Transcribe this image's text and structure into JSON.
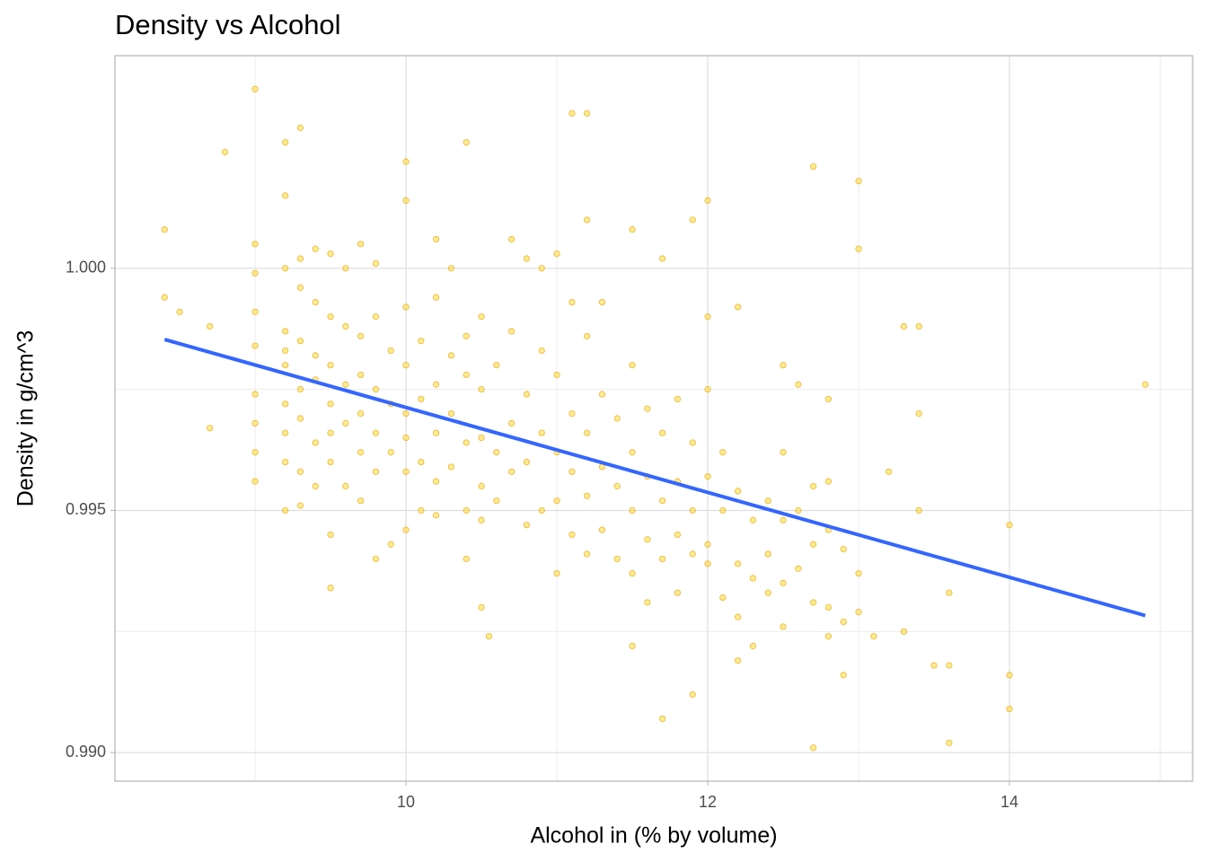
{
  "chart_data": {
    "type": "scatter",
    "title": "Density vs Alcohol",
    "x_label": "Alcohol in (% by volume)",
    "y_label": "Density in g/cm^3",
    "xlim": [
      8.071,
      15.214
    ],
    "ylim": [
      0.98941,
      1.00439
    ],
    "xticks": [
      10,
      12,
      14
    ],
    "yticks": [
      {
        "value": 0.99,
        "label": "0.990"
      },
      0.995,
      {
        "value": 1,
        "label": "1.000"
      }
    ],
    "x_minor_grid": [
      9,
      11,
      13,
      15
    ],
    "y_minor_grid": [
      0.9925,
      0.9975
    ],
    "grid": true,
    "color": "#ffd700",
    "edge_color": "#e69500",
    "x": [
      9.0,
      8.4,
      8.4,
      8.5,
      8.7,
      8.7,
      8.8,
      9.2,
      9.3,
      9.2,
      10.4,
      10.0,
      11.1,
      11.2,
      12.7,
      13.0,
      13.0,
      12.0,
      14.9,
      14.0,
      14.0,
      14.0,
      12.7,
      13.6,
      11.7,
      11.9,
      13.5,
      13.6,
      13.3,
      13.1,
      12.9,
      13.6,
      9.5,
      10.55,
      10.5,
      11.5,
      13.3,
      13.4,
      13.4,
      13.4,
      13.2,
      10.4,
      12.2,
      12.3,
      9.0,
      9.0,
      9.0,
      9.0,
      9.0,
      9.0,
      9.0,
      9.0,
      9.2,
      9.2,
      9.2,
      9.2,
      9.2,
      9.2,
      9.2,
      9.2,
      9.3,
      9.3,
      9.3,
      9.3,
      9.3,
      9.3,
      9.3,
      9.4,
      9.4,
      9.4,
      9.4,
      9.4,
      9.4,
      9.5,
      9.5,
      9.5,
      9.5,
      9.5,
      9.5,
      9.5,
      9.6,
      9.6,
      9.6,
      9.6,
      9.6,
      9.7,
      9.7,
      9.7,
      9.7,
      9.7,
      9.7,
      9.8,
      9.8,
      9.8,
      9.8,
      9.8,
      9.8,
      9.9,
      9.9,
      9.9,
      9.9,
      10.0,
      10.0,
      10.0,
      10.0,
      10.0,
      10.0,
      10.0,
      10.1,
      10.1,
      10.1,
      10.1,
      10.2,
      10.2,
      10.2,
      10.2,
      10.2,
      10.2,
      10.3,
      10.3,
      10.3,
      10.3,
      10.4,
      10.4,
      10.4,
      10.4,
      10.5,
      10.5,
      10.5,
      10.5,
      10.5,
      10.6,
      10.6,
      10.6,
      10.7,
      10.7,
      10.7,
      10.7,
      10.8,
      10.8,
      10.8,
      10.8,
      10.9,
      10.9,
      10.9,
      10.9,
      11.0,
      11.0,
      11.0,
      11.0,
      11.0,
      11.1,
      11.1,
      11.1,
      11.1,
      11.2,
      11.2,
      11.2,
      11.2,
      11.2,
      11.3,
      11.3,
      11.3,
      11.3,
      11.4,
      11.4,
      11.4,
      11.5,
      11.5,
      11.5,
      11.5,
      11.5,
      11.6,
      11.6,
      11.6,
      11.6,
      11.7,
      11.7,
      11.7,
      11.7,
      11.8,
      11.8,
      11.8,
      11.8,
      11.9,
      11.9,
      11.9,
      11.9,
      12.0,
      12.0,
      12.0,
      12.0,
      12.0,
      12.1,
      12.1,
      12.1,
      12.2,
      12.2,
      12.2,
      12.2,
      12.3,
      12.3,
      12.4,
      12.4,
      12.4,
      12.5,
      12.5,
      12.5,
      12.5,
      12.5,
      12.6,
      12.6,
      12.6,
      12.7,
      12.7,
      12.7,
      12.8,
      12.8,
      12.8,
      12.8,
      12.8,
      12.9,
      12.9,
      13.0,
      13.0
    ],
    "values": [
      1.0037,
      1.0008,
      0.9994,
      0.9991,
      0.9988,
      0.9967,
      1.0024,
      1.0026,
      1.0029,
      1.0015,
      1.0026,
      1.0022,
      1.0032,
      1.0032,
      1.0021,
      1.0018,
      1.0004,
      1.0014,
      0.9976,
      0.9947,
      0.9909,
      0.9916,
      0.9901,
      0.9902,
      0.9907,
      0.9912,
      0.9918,
      0.9918,
      0.9925,
      0.9924,
      0.9916,
      0.9933,
      0.9934,
      0.9924,
      0.993,
      0.9922,
      0.9988,
      0.9988,
      0.997,
      0.995,
      0.9958,
      0.994,
      0.9919,
      0.9922,
      0.9999,
      0.9984,
      0.9974,
      0.9968,
      0.9962,
      0.9956,
      1.0005,
      0.9991,
      1.0,
      0.9987,
      0.998,
      0.9972,
      0.9966,
      0.996,
      0.995,
      0.9983,
      0.9996,
      0.9985,
      0.9975,
      0.9969,
      0.9958,
      0.9951,
      1.0002,
      0.9993,
      0.9982,
      0.9977,
      0.9964,
      0.9955,
      1.0004,
      0.999,
      0.998,
      0.9972,
      0.9966,
      0.996,
      0.9945,
      1.0003,
      0.9988,
      0.9976,
      0.9968,
      0.9955,
      1.0,
      0.9986,
      0.9978,
      0.997,
      0.9962,
      0.9952,
      1.0005,
      0.999,
      0.9975,
      0.9966,
      0.9958,
      0.994,
      1.0001,
      0.9983,
      0.9972,
      0.9962,
      0.9943,
      0.9992,
      0.998,
      0.997,
      0.9965,
      0.9958,
      0.9946,
      1.0014,
      0.9985,
      0.9973,
      0.996,
      0.995,
      0.9994,
      0.9976,
      0.9966,
      0.9956,
      0.9949,
      1.0006,
      0.9982,
      0.997,
      0.9959,
      1.0,
      0.9986,
      0.9978,
      0.9964,
      0.995,
      0.999,
      0.9975,
      0.9965,
      0.9955,
      0.9948,
      0.998,
      0.9962,
      0.9952,
      0.9987,
      0.9968,
      0.9958,
      1.0006,
      0.9974,
      0.996,
      0.9947,
      1.0002,
      0.9983,
      0.9966,
      0.995,
      1.0,
      0.9978,
      0.9962,
      0.9952,
      0.9937,
      1.0003,
      0.997,
      0.9958,
      0.9945,
      0.9993,
      0.9986,
      0.9966,
      0.9953,
      0.9941,
      1.001,
      0.9974,
      0.9959,
      0.9946,
      0.9993,
      0.9969,
      0.9955,
      0.994,
      0.998,
      0.9962,
      0.995,
      0.9937,
      1.0008,
      0.9971,
      0.9957,
      0.9944,
      0.9931,
      0.9966,
      0.9952,
      0.994,
      1.0002,
      0.9973,
      0.9956,
      0.9945,
      0.9933,
      0.9964,
      0.995,
      0.9941,
      1.001,
      0.999,
      0.9975,
      0.9957,
      0.9943,
      0.9939,
      0.9962,
      0.995,
      0.9932,
      0.9992,
      0.9954,
      0.9939,
      0.9928,
      0.9948,
      0.9936,
      0.9952,
      0.9941,
      0.9933,
      0.998,
      0.9962,
      0.9948,
      0.9935,
      0.9926,
      0.9976,
      0.995,
      0.9938,
      0.9955,
      0.9943,
      0.9931,
      0.9973,
      0.9956,
      0.9946,
      0.993,
      0.9924,
      0.9942,
      0.9927,
      0.9937,
      0.9929
    ],
    "trend": {
      "x": [
        8.4,
        14.9
      ],
      "values": [
        0.99853,
        0.99283
      ],
      "color": "#3366ff"
    }
  }
}
